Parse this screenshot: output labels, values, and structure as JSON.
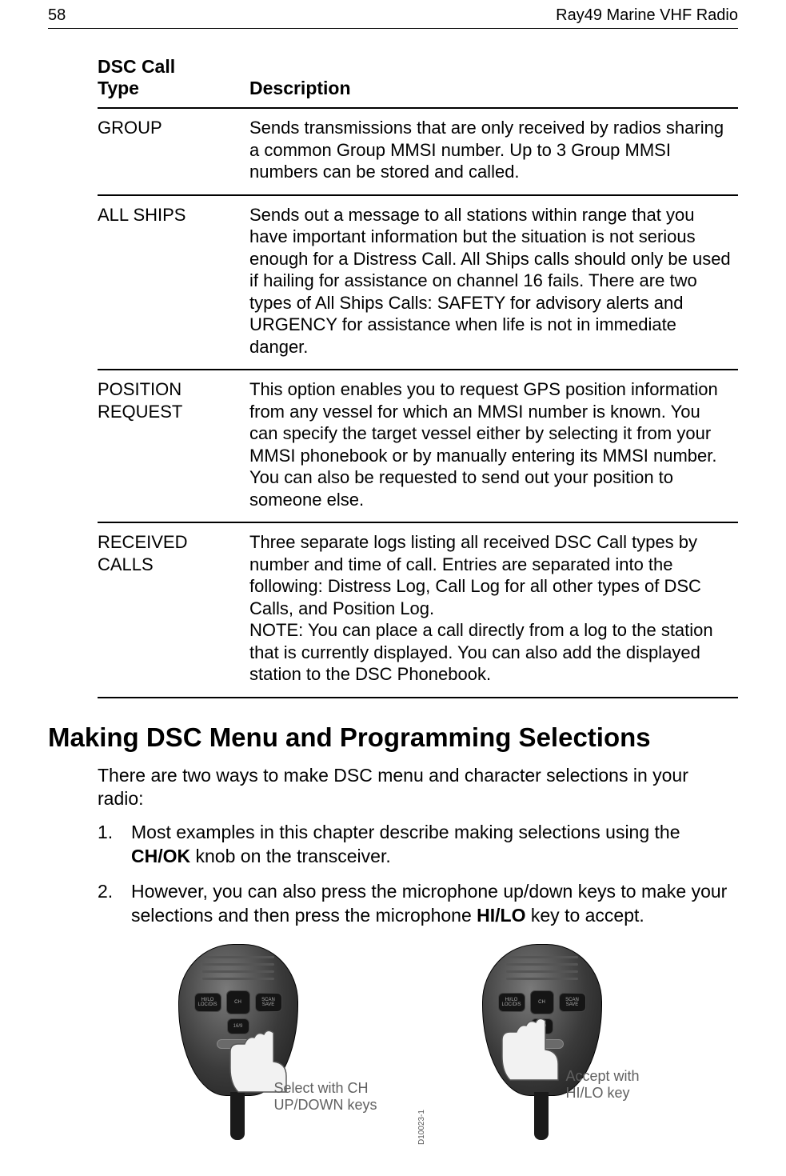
{
  "header": {
    "page_number": "58",
    "doc_title": "Ray49 Marine VHF Radio"
  },
  "table": {
    "columns": [
      "DSC Call Type",
      "Description"
    ],
    "rows": [
      {
        "type": "GROUP",
        "desc": "Sends transmissions that are only received by radios sharing a common Group MMSI number. Up to 3 Group MMSI numbers can be stored and called."
      },
      {
        "type": "ALL SHIPS",
        "desc": "Sends out a message to all stations within range that you have important information but the situation is not serious enough for a Distress Call. All Ships calls should only be used if hailing for assistance on channel 16 fails. There are two types of All Ships Calls: SAFETY for advisory alerts and URGENCY for assistance when life is not in immediate danger."
      },
      {
        "type": "POSITION REQUEST",
        "desc": "This option enables you to request GPS position information from any vessel for which an MMSI number is known. You can specify the target vessel either by selecting it from your MMSI phonebook or by manually entering its MMSI number. You can also be requested to send out your position to someone else."
      },
      {
        "type": "RECEIVED CALLS",
        "desc": "Three separate logs listing all received DSC Call types by number and time of call. Entries are separated into the following: Distress Log, Call Log for all other types of DSC Calls, and Position Log.\nNOTE: You can place a call directly from a log to the station that is currently displayed. You can also add the displayed station to the DSC Phonebook."
      }
    ]
  },
  "section": {
    "heading": "Making DSC Menu and Programming Selections",
    "intro": "There are two ways to make DSC menu and character selections in your radio:",
    "items": [
      {
        "num": "1.",
        "pre": "Most examples in this chapter describe making selections using the ",
        "bold": "CH/OK",
        "post": " knob on the transceiver."
      },
      {
        "num": "2.",
        "pre": "However, you can also press the microphone up/down keys to make your selections and then press the microphone ",
        "bold": "HI/LO",
        "post": " key to accept."
      }
    ]
  },
  "figure": {
    "mic_buttons": {
      "left_top": "HI/LO",
      "left_bottom": "LOC/DIS",
      "center": "CH",
      "right_top": "SCAN",
      "right_bottom": "SAVE",
      "sub": "16/9"
    },
    "captions": {
      "left_line1": "Select with CH",
      "left_line2": "UP/DOWN keys",
      "right_line1": "Accept with",
      "right_line2": "HI/LO key"
    },
    "figure_id": "D10023-1"
  },
  "colors": {
    "text": "#000000",
    "caption": "#606060",
    "rule": "#000000",
    "mic_dark": "#1a1a1a",
    "mic_mid": "#3a3a3a",
    "mic_light": "#7a7a7a",
    "hand_fill": "#f2f2f2",
    "hand_stroke": "#555555"
  }
}
